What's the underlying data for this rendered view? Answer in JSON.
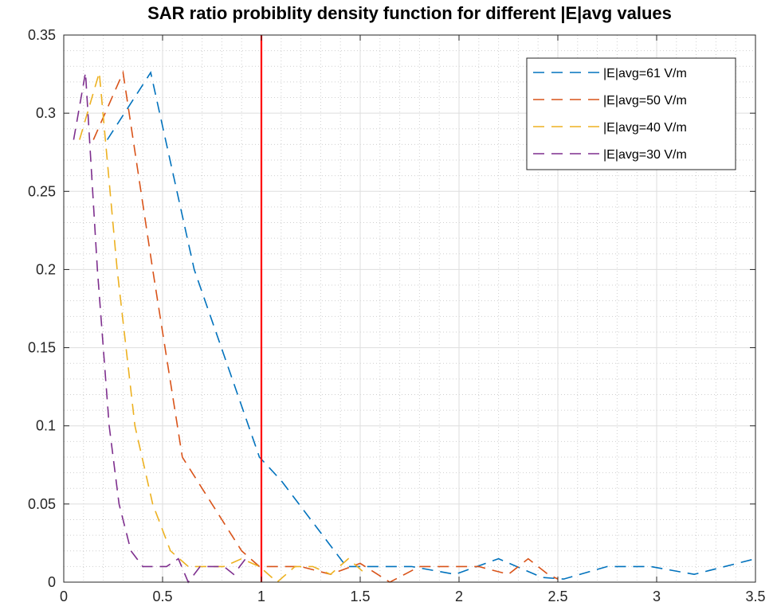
{
  "chart_data": {
    "type": "line",
    "title": "SAR ratio probiblity density function for different |E|avg values",
    "xlabel": "",
    "ylabel": "",
    "xlim": [
      0,
      3.5
    ],
    "ylim": [
      0,
      0.35
    ],
    "x_ticks": [
      "0",
      "0.5",
      "1",
      "1.5",
      "2",
      "2.5",
      "3",
      "3.5"
    ],
    "y_ticks": [
      "0",
      "0.05",
      "0.1",
      "0.15",
      "0.2",
      "0.25",
      "0.3",
      "0.35"
    ],
    "grid": true,
    "minor_grid": true,
    "legend_position": "top-right",
    "vertical_line": {
      "x": 1,
      "color": "#ff0000"
    },
    "series": [
      {
        "name": "|E|avg=61 V/m",
        "color": "#0072BD",
        "x": [
          0.22,
          0.44,
          0.66,
          0.99,
          1.1,
          1.43,
          1.65,
          1.76,
          1.98,
          2.2,
          2.42,
          2.53,
          2.75,
          2.97,
          3.19,
          3.5
        ],
        "y": [
          0.283,
          0.326,
          0.2,
          0.08,
          0.065,
          0.01,
          0.01,
          0.01,
          0.005,
          0.015,
          0.003,
          0.002,
          0.01,
          0.01,
          0.005,
          0.015
        ]
      },
      {
        "name": "|E|avg=50 V/m",
        "color": "#D95319",
        "x": [
          0.15,
          0.3,
          0.45,
          0.6,
          0.75,
          0.9,
          0.99,
          1.2,
          1.35,
          1.5,
          1.65,
          1.8,
          1.95,
          2.1,
          2.25,
          2.35,
          2.45,
          2.5
        ],
        "y": [
          0.283,
          0.326,
          0.2,
          0.08,
          0.05,
          0.02,
          0.01,
          0.01,
          0.005,
          0.012,
          0.0,
          0.01,
          0.01,
          0.01,
          0.005,
          0.015,
          0.005,
          0.002
        ]
      },
      {
        "name": "|E|avg=40 V/m",
        "color": "#EDB120",
        "x": [
          0.08,
          0.18,
          0.27,
          0.36,
          0.45,
          0.54,
          0.63,
          0.72,
          0.81,
          0.9,
          0.99,
          1.08,
          1.17,
          1.26,
          1.35,
          1.44,
          1.53
        ],
        "y": [
          0.283,
          0.326,
          0.2,
          0.1,
          0.05,
          0.02,
          0.01,
          0.01,
          0.01,
          0.015,
          0.01,
          0.0,
          0.01,
          0.01,
          0.005,
          0.015,
          0.005
        ]
      },
      {
        "name": "|E|avg=30 V/m",
        "color": "#7E2F8E",
        "x": [
          0.05,
          0.11,
          0.17,
          0.23,
          0.28,
          0.34,
          0.4,
          0.46,
          0.52,
          0.58,
          0.63,
          0.69,
          0.75,
          0.81,
          0.86,
          0.92
        ],
        "y": [
          0.283,
          0.326,
          0.2,
          0.1,
          0.05,
          0.02,
          0.01,
          0.01,
          0.01,
          0.015,
          0.0,
          0.01,
          0.01,
          0.01,
          0.005,
          0.015
        ]
      }
    ]
  }
}
